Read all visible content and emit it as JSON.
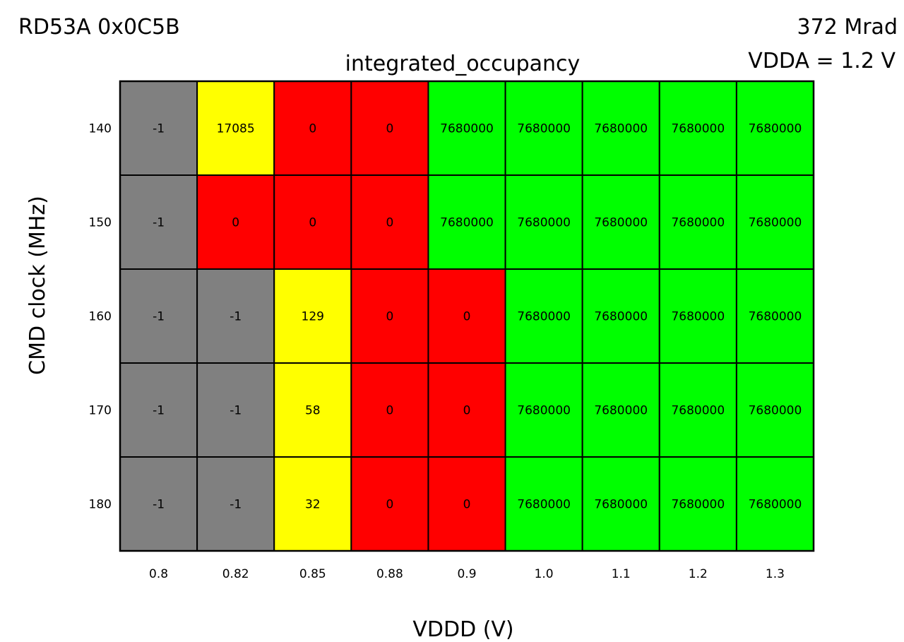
{
  "chart_data": {
    "type": "heatmap",
    "title": "integrated_occupancy",
    "header_left": "RD53A 0x0C5B",
    "header_right_line1": "372 Mrad",
    "header_right_line2": "VDDA = 1.2 V",
    "xlabel": "VDDD (V)",
    "ylabel": "CMD clock (MHz)",
    "x": [
      "0.8",
      "0.82",
      "0.85",
      "0.88",
      "0.9",
      "1.0",
      "1.1",
      "1.2",
      "1.3"
    ],
    "y": [
      "140",
      "150",
      "160",
      "170",
      "180"
    ],
    "values": [
      [
        -1,
        17085,
        0,
        0,
        7680000,
        7680000,
        7680000,
        7680000,
        7680000
      ],
      [
        -1,
        0,
        0,
        0,
        7680000,
        7680000,
        7680000,
        7680000,
        7680000
      ],
      [
        -1,
        -1,
        129,
        0,
        0,
        7680000,
        7680000,
        7680000,
        7680000
      ],
      [
        -1,
        -1,
        58,
        0,
        0,
        7680000,
        7680000,
        7680000,
        7680000
      ],
      [
        -1,
        -1,
        32,
        0,
        0,
        7680000,
        7680000,
        7680000,
        7680000
      ]
    ],
    "colors": {
      "missing": "#808080",
      "zero": "#ff0000",
      "partial": "#ffff00",
      "full": "#00ff00",
      "grid": "#000000"
    }
  }
}
